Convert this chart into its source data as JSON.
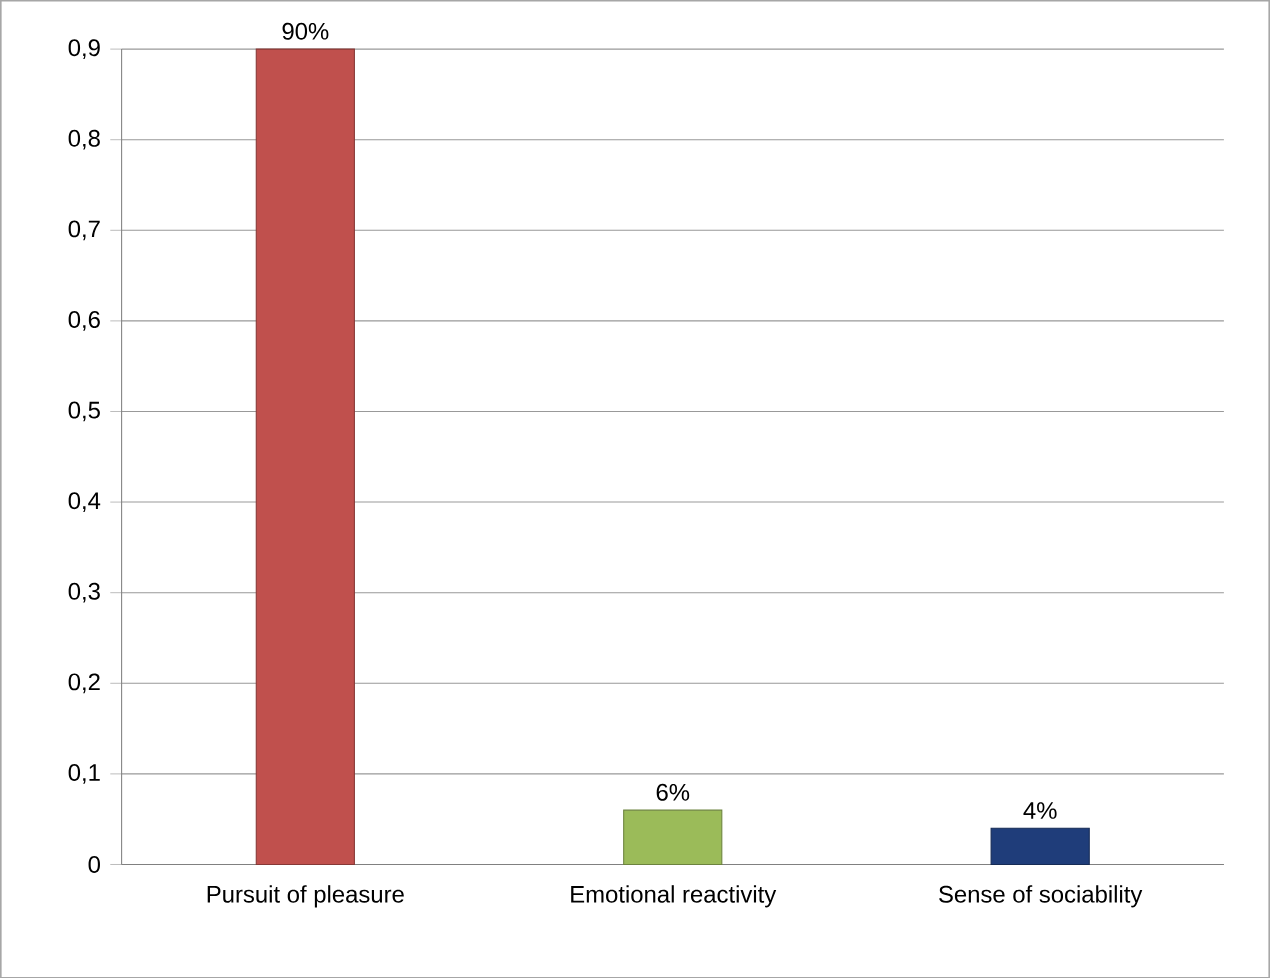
{
  "chart_data": {
    "type": "bar",
    "categories": [
      "Pursuit of pleasure",
      "Emotional reactivity",
      "Sense of sociability"
    ],
    "values": [
      0.9,
      0.06,
      0.04
    ],
    "colors": [
      "#c0504d",
      "#9bbb59",
      "#1f3d7a"
    ],
    "value_labels": [
      "90%",
      "6%",
      "4%"
    ],
    "ylim": [
      0,
      0.9
    ],
    "yticks": [
      0,
      {
        "value": 0.1,
        "label": "0,1"
      },
      {
        "value": 0.2,
        "label": "0,2"
      },
      {
        "value": 0.3,
        "label": "0,3"
      },
      {
        "value": 0.4,
        "label": "0,4"
      },
      {
        "value": 0.5,
        "label": "0,5"
      },
      {
        "value": 0.6,
        "label": "0,6"
      },
      {
        "value": 0.7,
        "label": "0,7"
      },
      {
        "value": 0.8,
        "label": "0,8"
      },
      {
        "value": 0.9,
        "label": "0,9"
      }
    ],
    "grid": "y"
  }
}
